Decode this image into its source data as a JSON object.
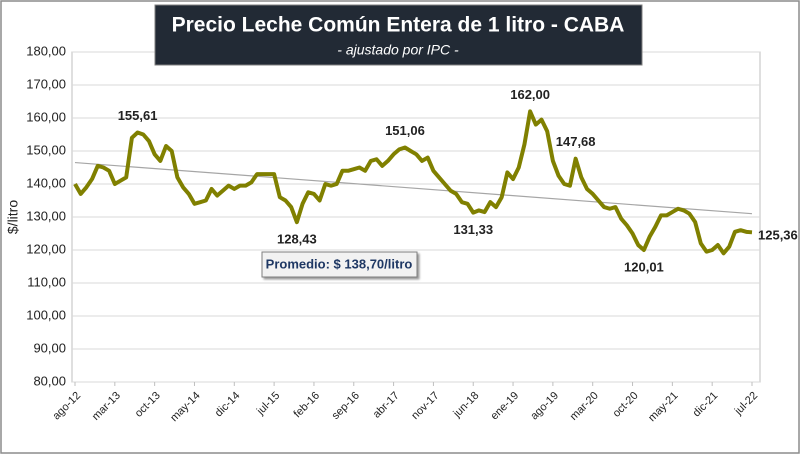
{
  "chart_data": {
    "type": "line",
    "title": "Precio Leche Común Entera de 1 litro - CABA",
    "subtitle": "- ajustado por IPC -",
    "y_label": "$/litro",
    "average_label": "Promedio: $ 138,70/litro",
    "grid": true,
    "ylim": [
      80,
      180
    ],
    "yticks": [
      {
        "value": 80,
        "label": "80,00"
      },
      {
        "value": 90,
        "label": "90,00"
      },
      {
        "value": 100,
        "label": "100,00"
      },
      {
        "value": 110,
        "label": "110,00"
      },
      {
        "value": 120,
        "label": "120,00"
      },
      {
        "value": 130,
        "label": "130,00"
      },
      {
        "value": 140,
        "label": "140,00"
      },
      {
        "value": 150,
        "label": "150,00"
      },
      {
        "value": 160,
        "label": "160,00"
      },
      {
        "value": 170,
        "label": "170,00"
      },
      {
        "value": 180,
        "label": "180,00"
      }
    ],
    "categories": [
      "ago-12",
      null,
      null,
      null,
      null,
      null,
      null,
      "mar-13",
      null,
      null,
      null,
      null,
      null,
      null,
      "oct-13",
      null,
      null,
      null,
      null,
      null,
      null,
      "may-14",
      null,
      null,
      null,
      null,
      null,
      null,
      "dic-14",
      null,
      null,
      null,
      null,
      null,
      null,
      "jul-15",
      null,
      null,
      null,
      null,
      null,
      null,
      "feb-16",
      null,
      null,
      null,
      null,
      null,
      null,
      "sep-16",
      null,
      null,
      null,
      null,
      null,
      null,
      "abr-17",
      null,
      null,
      null,
      null,
      null,
      null,
      "nov-17",
      null,
      null,
      null,
      null,
      null,
      null,
      "jun-18",
      null,
      null,
      null,
      null,
      null,
      null,
      "ene-19",
      null,
      null,
      null,
      null,
      null,
      null,
      "ago-19",
      null,
      null,
      null,
      null,
      null,
      null,
      "mar-20",
      null,
      null,
      null,
      null,
      null,
      null,
      "oct-20",
      null,
      null,
      null,
      null,
      null,
      null,
      "may-21",
      null,
      null,
      null,
      null,
      null,
      null,
      "dic-21",
      null,
      null,
      null,
      null,
      null,
      null,
      "jul-22"
    ],
    "series": [
      {
        "name": null,
        "color": "#808000",
        "values": [
          140,
          137,
          139,
          141.5,
          145.5,
          145,
          144,
          140,
          141,
          142,
          154,
          155.61,
          155,
          153,
          149,
          147,
          151.5,
          150,
          142,
          139,
          137,
          134,
          134.5,
          135,
          138.5,
          136.5,
          138,
          139.5,
          138.5,
          139.5,
          139.5,
          140.5,
          143,
          143,
          143,
          143,
          136,
          135,
          133,
          128.43,
          134,
          137.5,
          137,
          135,
          140,
          139.5,
          140,
          144,
          144,
          144.5,
          145,
          144,
          147,
          147.5,
          145.5,
          147,
          149,
          150.5,
          151.06,
          150,
          149,
          147,
          148,
          144,
          142,
          140,
          138,
          137,
          134.5,
          134,
          131.33,
          132,
          131.5,
          134.5,
          133,
          136,
          143.5,
          141.5,
          145,
          152,
          162,
          158,
          159.5,
          156,
          147,
          142.5,
          140,
          139.5,
          147.68,
          142,
          138.5,
          137,
          135,
          133,
          132.5,
          133,
          129.5,
          127.5,
          125,
          121.5,
          120.01,
          124,
          127,
          130.5,
          130.5,
          131.5,
          132.5,
          132,
          131,
          128.5,
          122,
          119.5,
          120,
          121.5,
          119,
          121,
          125.5,
          126,
          125.5,
          125.36
        ],
        "value_labels": [
          null,
          null,
          null,
          null,
          null,
          null,
          null,
          null,
          null,
          null,
          null,
          "155,61",
          null,
          null,
          null,
          null,
          null,
          null,
          null,
          null,
          null,
          null,
          null,
          null,
          null,
          null,
          null,
          null,
          null,
          null,
          null,
          null,
          null,
          null,
          null,
          null,
          null,
          null,
          null,
          "128,43",
          null,
          null,
          null,
          null,
          null,
          null,
          null,
          null,
          null,
          null,
          null,
          null,
          null,
          null,
          null,
          null,
          null,
          null,
          "151,06",
          null,
          null,
          null,
          null,
          null,
          null,
          null,
          null,
          null,
          null,
          null,
          "131,33",
          null,
          null,
          null,
          null,
          null,
          null,
          null,
          null,
          null,
          "162,00",
          null,
          null,
          null,
          null,
          null,
          null,
          null,
          "147,68",
          null,
          null,
          null,
          null,
          null,
          null,
          null,
          null,
          null,
          null,
          null,
          "120,01",
          null,
          null,
          null,
          null,
          null,
          null,
          null,
          null,
          null,
          null,
          null,
          null,
          null,
          null,
          null,
          null,
          null,
          null,
          "125,36"
        ]
      }
    ],
    "trendline": {
      "color": "#a6a6a6",
      "values": [
        146.5,
        131
      ]
    }
  }
}
